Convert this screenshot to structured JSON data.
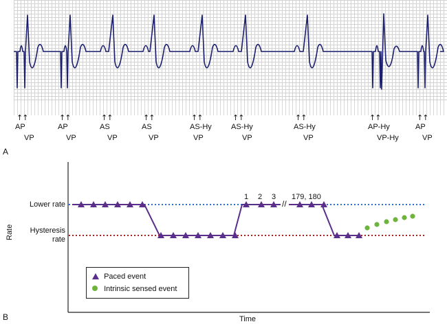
{
  "panel_a": {
    "letter": "A",
    "beats": [
      {
        "top": "AP",
        "bottom": "VP"
      },
      {
        "top": "AP",
        "bottom": "VP"
      },
      {
        "top": "AS",
        "bottom": "VP"
      },
      {
        "top": "AS",
        "bottom": "VP"
      },
      {
        "top": "AS-Hy",
        "bottom": "VP"
      },
      {
        "top": "AS-Hy",
        "bottom": "VP"
      },
      {
        "top": "AS-Hy",
        "bottom": "VP"
      },
      {
        "top": "AP-Hy",
        "bottom": "VP-Hy"
      },
      {
        "top": "AP",
        "bottom": "VP"
      }
    ],
    "arrow_glyph": "↑↑"
  },
  "panel_b": {
    "letter": "B",
    "y_axis_label": "Rate",
    "x_axis_label": "Time",
    "lower_rate_label": "Lower rate",
    "hysteresis_label_line1": "Hysteresis",
    "hysteresis_label_line2": "rate",
    "event_numbers": [
      "1",
      "2",
      "3",
      "179, 180"
    ],
    "break_mark": "//",
    "legend": {
      "paced": "Paced event",
      "intrinsic": "Intrinsic sensed event"
    },
    "colors": {
      "paced": "#5b2e8c",
      "intrinsic": "#6fb33f",
      "lower_rate_line": "#2b6fd6",
      "hysteresis_line": "#b01e1e",
      "ecg_trace": "#1c1f6e"
    }
  }
}
